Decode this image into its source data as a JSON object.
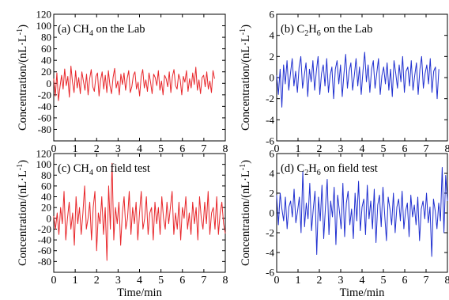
{
  "chart_data": [
    {
      "type": "line",
      "title_prefix": "(a) CH",
      "title_sub": "4",
      "title_suffix": " on the Lab",
      "ylabel": "Concentration/(nL·L",
      "ylabel_sup": "-1",
      "ylabel_end": ")",
      "xlabel": "",
      "xlim": [
        0,
        8
      ],
      "ylim": [
        -100,
        120
      ],
      "x_ticks": [
        0,
        1,
        2,
        3,
        4,
        5,
        6,
        7,
        8
      ],
      "y_ticks": [
        -80,
        -60,
        -40,
        -20,
        0,
        20,
        40,
        60,
        80,
        100,
        120
      ],
      "color": "#e8262a",
      "x_start": 0,
      "x_end": 7.5,
      "values": [
        8,
        -22,
        18,
        -30,
        -6,
        14,
        -10,
        25,
        -4,
        12,
        -24,
        30,
        2,
        -16,
        22,
        -8,
        10,
        -18,
        20,
        4,
        -12,
        16,
        -20,
        8,
        24,
        -6,
        -14,
        12,
        18,
        -22,
        6,
        20,
        -10,
        14,
        -16,
        22,
        -4,
        -18,
        10,
        26,
        -8,
        4,
        -20,
        16,
        -2,
        18,
        -12,
        8,
        22,
        -16,
        -6,
        14,
        20,
        -10,
        2,
        -22,
        12,
        24,
        -8,
        6,
        -14,
        18,
        2,
        -18,
        16,
        10,
        -4,
        22,
        -12,
        4,
        -20,
        14,
        8,
        -6,
        20,
        -16,
        12,
        24,
        -4,
        -10,
        16,
        6,
        -20,
        12,
        2,
        22,
        -14,
        8,
        -8,
        18,
        -2,
        28,
        -12,
        6,
        -18,
        10,
        14,
        -6,
        20,
        -10,
        4,
        -16,
        22,
        8
      ]
    },
    {
      "type": "line",
      "title_prefix": "(b) C",
      "title_sub": "2",
      "title_mid": "H",
      "title_sub2": "6",
      "title_suffix": " on the Lab",
      "ylabel": "Concentration/(nL·L",
      "ylabel_sup": "-1",
      "ylabel_end": ")",
      "xlabel": "",
      "xlim": [
        0,
        8
      ],
      "ylim": [
        -6,
        6
      ],
      "x_ticks": [
        0,
        1,
        2,
        3,
        4,
        5,
        6,
        7,
        8
      ],
      "y_ticks": [
        -6,
        -4,
        -2,
        0,
        2,
        4,
        6
      ],
      "color": "#1f2fd0",
      "x_start": 0,
      "x_end": 7.6,
      "values": [
        0.2,
        -1.6,
        0.8,
        -2.8,
        1.2,
        -0.6,
        1.6,
        -1.2,
        0.4,
        1.8,
        -0.8,
        0.6,
        -1.4,
        1.0,
        2.0,
        -1.0,
        0.2,
        1.4,
        -1.8,
        0.8,
        -0.4,
        1.6,
        -1.2,
        0.6,
        2.0,
        -1.6,
        0.4,
        1.2,
        -0.8,
        1.8,
        -1.4,
        0.2,
        1.0,
        -2.0,
        0.8,
        1.6,
        -0.6,
        1.2,
        -1.8,
        0.4,
        2.2,
        -1.0,
        0.6,
        1.4,
        -1.2,
        0.2,
        1.8,
        -0.8,
        1.0,
        -1.6,
        0.6,
        2.4,
        -0.4,
        1.2,
        -1.4,
        0.8,
        1.6,
        -1.0,
        0.4,
        1.8,
        -1.6,
        0.2,
        1.0,
        -0.6,
        1.4,
        -1.2,
        0.8,
        -1.8,
        1.6,
        0.4,
        -1.0,
        1.2,
        -0.4,
        2.0,
        -1.4,
        0.6,
        1.0,
        -0.8,
        1.6,
        -1.2,
        0.2,
        1.4,
        -1.6,
        0.8,
        2.0,
        -1.0,
        0.4,
        1.2,
        -0.6,
        1.8,
        -1.4,
        0.6,
        1.0,
        -2.0,
        0.8
      ]
    },
    {
      "type": "line",
      "title_prefix": "(c) CH",
      "title_sub": "4",
      "title_suffix": " on field test",
      "ylabel": "Concentration/(nL·L",
      "ylabel_sup": "-1",
      "ylabel_end": ")",
      "xlabel": "Time/min",
      "xlim": [
        0,
        8
      ],
      "ylim": [
        -100,
        120
      ],
      "x_ticks": [
        0,
        1,
        2,
        3,
        4,
        5,
        6,
        7,
        8
      ],
      "y_ticks": [
        -80,
        -60,
        -40,
        -20,
        0,
        20,
        40,
        60,
        80,
        100,
        120
      ],
      "color": "#e8262a",
      "x_start": 0,
      "x_end": 8,
      "values": [
        4,
        -20,
        10,
        -30,
        20,
        -10,
        50,
        -40,
        0,
        30,
        -20,
        10,
        -50,
        40,
        -10,
        20,
        -30,
        10,
        60,
        -20,
        0,
        30,
        -40,
        20,
        50,
        -60,
        10,
        -10,
        40,
        -30,
        20,
        -78,
        60,
        -20,
        102,
        -40,
        20,
        -10,
        30,
        -50,
        10,
        40,
        -20,
        0,
        50,
        -30,
        20,
        -10,
        30,
        -40,
        10,
        50,
        -20,
        0,
        40,
        -30,
        10,
        20,
        -40,
        30,
        -10,
        20,
        -30,
        40,
        0,
        -20,
        30,
        -10,
        20,
        50,
        -30,
        10,
        -20,
        30,
        -40,
        20,
        0,
        40,
        -20,
        10,
        -30,
        30,
        -10,
        20,
        -40,
        40,
        0,
        -20,
        30,
        -10,
        50,
        -30,
        10,
        20,
        -20,
        40,
        -30,
        10,
        30,
        -10,
        -28
      ]
    },
    {
      "type": "line",
      "title_prefix": "(d) C",
      "title_sub": "2",
      "title_mid": "H",
      "title_sub2": "6",
      "title_suffix": " on field test",
      "ylabel": "Concentration/(nL·L",
      "ylabel_sup": "-1",
      "ylabel_end": ")",
      "xlabel": "Time/min",
      "xlim": [
        0,
        8
      ],
      "ylim": [
        -6,
        6
      ],
      "x_ticks": [
        0,
        1,
        2,
        3,
        4,
        5,
        6,
        7,
        8
      ],
      "y_ticks": [
        -6,
        -4,
        -2,
        0,
        2,
        4,
        6
      ],
      "color": "#1f2fd0",
      "x_start": 0,
      "x_end": 8,
      "values": [
        1.8,
        -1.2,
        2.0,
        0.4,
        -0.8,
        1.6,
        -1.6,
        0.6,
        1.2,
        -0.4,
        2.4,
        -1.0,
        0.2,
        1.6,
        -2.0,
        4.2,
        -1.4,
        1.0,
        -0.6,
        3.0,
        -1.8,
        0.4,
        2.2,
        -4.2,
        1.6,
        -0.8,
        2.8,
        -2.6,
        0.6,
        3.4,
        -2.2,
        1.2,
        -0.4,
        2.6,
        -3.2,
        1.8,
        0.2,
        -1.6,
        3.0,
        -2.4,
        1.0,
        2.2,
        -1.2,
        0.4,
        -2.6,
        2.0,
        -0.8,
        3.2,
        -1.8,
        0.6,
        1.4,
        -2.2,
        2.8,
        -0.6,
        1.2,
        -1.6,
        2.4,
        -3.0,
        0.8,
        1.8,
        -1.4,
        2.6,
        -0.2,
        -2.8,
        1.6,
        0.4,
        -1.2,
        2.0,
        -2.0,
        0.6,
        1.4,
        -0.8,
        2.2,
        -1.6,
        0.2,
        1.0,
        -2.4,
        1.8,
        -0.4,
        0.8,
        -1.2,
        1.6,
        -2.8,
        0.4,
        1.2,
        -0.6,
        2.0,
        -1.0,
        0.6,
        -4.4,
        1.4,
        0.2,
        -1.6,
        1.0,
        -0.8,
        4.6,
        -2.0,
        3.8,
        1.2
      ]
    }
  ]
}
